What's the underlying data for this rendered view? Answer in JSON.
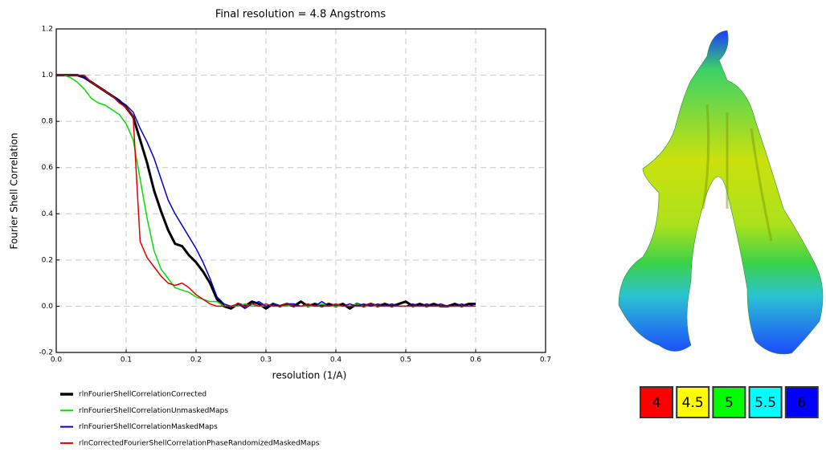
{
  "chart_data": {
    "type": "line",
    "title": "Final resolution =   4.8 Angstroms",
    "x_label": "resolution (1/A)",
    "y_label": "Fourier Shell Correlation",
    "x": [
      0,
      0.01,
      0.02,
      0.03,
      0.04,
      0.05,
      0.06,
      0.07,
      0.08,
      0.09,
      0.1,
      0.11,
      0.12,
      0.13,
      0.14,
      0.15,
      0.16,
      0.17,
      0.18,
      0.19,
      0.2,
      0.21,
      0.22,
      0.23,
      0.24,
      0.25,
      0.26,
      0.27,
      0.28,
      0.29,
      0.3,
      0.31,
      0.32,
      0.33,
      0.34,
      0.35,
      0.36,
      0.37,
      0.38,
      0.39,
      0.4,
      0.41,
      0.42,
      0.43,
      0.44,
      0.45,
      0.46,
      0.47,
      0.48,
      0.49,
      0.5,
      0.51,
      0.52,
      0.53,
      0.54,
      0.55,
      0.56,
      0.57,
      0.58,
      0.59,
      0.6
    ],
    "series": [
      {
        "name": "rlnFourierShellCorrelationCorrected",
        "color": "#000000",
        "width": 3,
        "values": [
          1,
          1,
          1,
          1,
          0.99,
          0.97,
          0.95,
          0.93,
          0.91,
          0.89,
          0.86,
          0.82,
          0.72,
          0.62,
          0.5,
          0.41,
          0.33,
          0.27,
          0.26,
          0.22,
          0.19,
          0.15,
          0.1,
          0.03,
          0,
          -0.01,
          0.01,
          0,
          0.02,
          0.01,
          -0.01,
          0.01,
          0,
          0.01,
          0,
          0.02,
          0,
          0.01,
          0,
          0.01,
          0,
          0.01,
          -0.01,
          0.01,
          0,
          0.01,
          0,
          0.01,
          0,
          0.01,
          0.02,
          0,
          0.01,
          0,
          0.01,
          0,
          0,
          0.01,
          0,
          0.01,
          0.01
        ]
      },
      {
        "name": "rlnFourierShellCorrelationUnmaskedMaps",
        "color": "#00e000",
        "width": 1.5,
        "values": [
          1,
          1,
          0.99,
          0.97,
          0.94,
          0.9,
          0.88,
          0.87,
          0.85,
          0.83,
          0.79,
          0.72,
          0.55,
          0.38,
          0.24,
          0.16,
          0.12,
          0.08,
          0.07,
          0.06,
          0.04,
          0.03,
          0.02,
          0.02,
          0,
          0,
          0,
          0.01,
          0,
          0,
          0,
          0.01,
          0,
          0,
          0.01,
          0,
          0,
          0,
          0.01,
          0,
          0,
          0,
          0,
          0.01,
          0,
          0,
          0,
          0,
          0.01,
          0,
          0,
          0,
          0,
          0,
          0,
          0,
          0,
          0,
          0,
          0,
          0
        ]
      },
      {
        "name": "rlnFourierShellCorrelationMaskedMaps",
        "color": "#0000d0",
        "width": 1.5,
        "values": [
          1,
          1,
          1,
          1,
          0.99,
          0.97,
          0.95,
          0.93,
          0.91,
          0.89,
          0.87,
          0.84,
          0.77,
          0.71,
          0.64,
          0.55,
          0.46,
          0.4,
          0.35,
          0.3,
          0.25,
          0.19,
          0.12,
          0.04,
          0.01,
          0,
          0.01,
          -0.01,
          0.01,
          0.02,
          0,
          0.01,
          0,
          0.01,
          0.01,
          0,
          0.01,
          0,
          0.02,
          0,
          0.01,
          0,
          0.01,
          0,
          0.01,
          0,
          0.01,
          0,
          0.01,
          0,
          0,
          0.01,
          0,
          0.01,
          0,
          0.01,
          0,
          0,
          0.01,
          0,
          0.01
        ]
      },
      {
        "name": "rlnCorrectedFourierShellCorrelationPhaseRandomizedMaskedMaps",
        "color": "#e00000",
        "width": 1.5,
        "values": [
          1,
          1,
          1,
          1,
          1,
          0.97,
          0.95,
          0.93,
          0.91,
          0.88,
          0.86,
          0.82,
          0.28,
          0.21,
          0.17,
          0.13,
          0.1,
          0.09,
          0.1,
          0.08,
          0.05,
          0.03,
          0.01,
          0,
          0,
          0,
          0.01,
          0,
          0.01,
          0,
          0.01,
          0,
          0,
          0.01,
          0,
          0,
          0.01,
          0,
          0,
          0,
          0.01,
          0,
          0,
          0,
          0,
          0.01,
          0,
          0,
          0,
          0,
          0,
          0,
          0,
          0,
          0,
          0,
          0,
          0,
          0,
          0,
          0
        ]
      }
    ],
    "xlim": [
      0,
      0.7
    ],
    "ylim": [
      -0.2,
      1.2
    ],
    "xticks": [
      {
        "value": 0,
        "label": "0.0"
      },
      0.1,
      0.2,
      0.3,
      0.4,
      0.5,
      0.6,
      0.7
    ],
    "yticks": [
      -0.2,
      {
        "value": 0,
        "label": "0.0"
      },
      0.2,
      0.4,
      0.6,
      0.8,
      {
        "value": 1,
        "label": "1.0"
      },
      1.2
    ],
    "grid": true
  },
  "color_key": {
    "labels": [
      4,
      4.5,
      5,
      5.5,
      6
    ],
    "colors": [
      "#ff0000",
      "#ffff00",
      "#00ff00",
      "#00ffff",
      "#0000ff"
    ]
  }
}
